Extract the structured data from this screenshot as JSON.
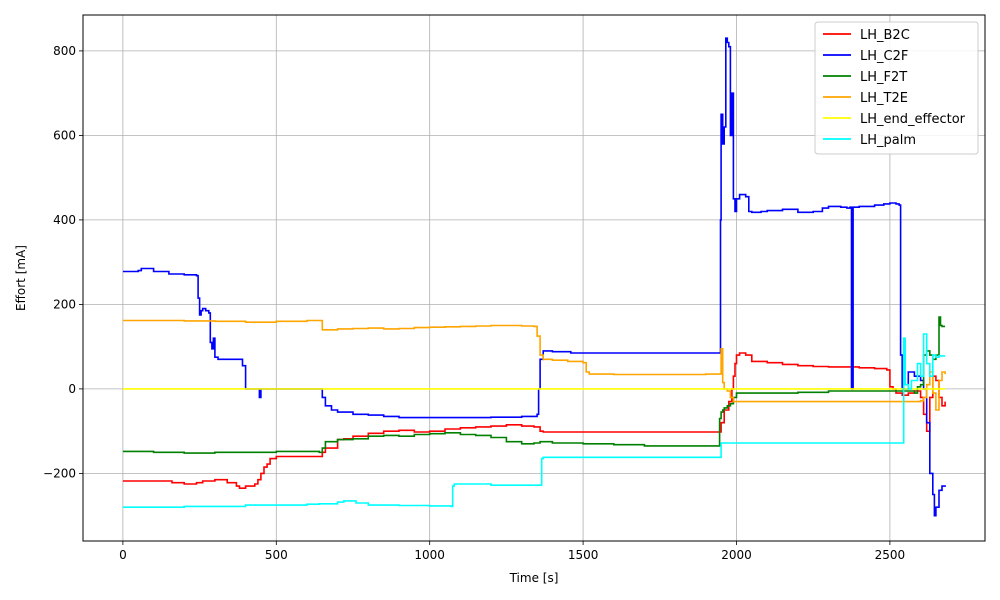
{
  "chart_data": {
    "type": "line",
    "title": "",
    "xlabel": "Time [s]",
    "ylabel": "Effort [mA]",
    "xlim": [
      -130,
      2810
    ],
    "ylim": [
      -360,
      885
    ],
    "xticks": [
      0,
      500,
      1000,
      1500,
      2000,
      2500
    ],
    "yticks": [
      -200,
      0,
      200,
      400,
      600,
      800
    ],
    "grid": true,
    "legend_position": "top-right",
    "series": [
      {
        "name": "LH_B2C",
        "color": "#ff0000",
        "x": [
          0,
          150,
          160,
          200,
          240,
          260,
          300,
          340,
          370,
          380,
          400,
          430,
          440,
          450,
          460,
          470,
          480,
          500,
          600,
          640,
          650,
          660,
          700,
          720,
          750,
          800,
          850,
          900,
          950,
          1000,
          1050,
          1100,
          1150,
          1200,
          1250,
          1300,
          1340,
          1360,
          1370,
          1500,
          1700,
          1900,
          1945,
          1950,
          1960,
          1975,
          1985,
          1990,
          1995,
          2000,
          2010,
          2030,
          2050,
          2100,
          2150,
          2200,
          2250,
          2300,
          2350,
          2400,
          2450,
          2490,
          2500,
          2510,
          2520,
          2540,
          2560,
          2580,
          2600,
          2610,
          2620,
          2630,
          2640,
          2650,
          2660,
          2670,
          2680
        ],
        "y": [
          -218,
          -218,
          -222,
          -225,
          -222,
          -218,
          -215,
          -222,
          -230,
          -235,
          -230,
          -225,
          -215,
          -200,
          -185,
          -178,
          -165,
          -160,
          -160,
          -160,
          -150,
          -140,
          -120,
          -118,
          -112,
          -105,
          -100,
          -98,
          -102,
          -100,
          -95,
          -92,
          -90,
          -88,
          -85,
          -88,
          -90,
          -100,
          -102,
          -102,
          -102,
          -102,
          -102,
          -80,
          -50,
          -30,
          0,
          30,
          60,
          80,
          85,
          80,
          65,
          62,
          58,
          55,
          53,
          52,
          52,
          50,
          48,
          45,
          5,
          0,
          -10,
          -15,
          -10,
          -5,
          -20,
          -60,
          -100,
          -20,
          30,
          20,
          -20,
          -40,
          -30
        ]
      },
      {
        "name": "LH_C2F",
        "color": "#0000ff",
        "x": [
          0,
          50,
          60,
          100,
          150,
          200,
          240,
          245,
          250,
          255,
          260,
          270,
          280,
          285,
          290,
          295,
          300,
          310,
          330,
          380,
          390,
          400,
          420,
          430,
          440,
          445,
          450,
          500,
          600,
          640,
          650,
          660,
          680,
          700,
          750,
          800,
          850,
          900,
          950,
          1000,
          1100,
          1200,
          1300,
          1340,
          1350,
          1355,
          1360,
          1370,
          1400,
          1450,
          1460,
          1500,
          1600,
          1700,
          1800,
          1900,
          1940,
          1945,
          1948,
          1950,
          1955,
          1960,
          1965,
          1970,
          1975,
          1980,
          1985,
          1990,
          1995,
          2000,
          2010,
          2020,
          2030,
          2040,
          2050,
          2080,
          2100,
          2150,
          2200,
          2250,
          2280,
          2300,
          2340,
          2360,
          2370,
          2375,
          2380,
          2400,
          2450,
          2480,
          2500,
          2520,
          2530,
          2535,
          2540,
          2560,
          2580,
          2600,
          2610,
          2620,
          2630,
          2640,
          2645,
          2650,
          2660,
          2670,
          2680
        ],
        "y": [
          278,
          280,
          285,
          278,
          272,
          270,
          268,
          215,
          175,
          185,
          190,
          185,
          180,
          110,
          95,
          120,
          75,
          70,
          70,
          70,
          55,
          0,
          0,
          0,
          0,
          -20,
          0,
          0,
          0,
          0,
          -20,
          -40,
          -50,
          -55,
          -60,
          -62,
          -65,
          -68,
          -68,
          -68,
          -68,
          -67,
          -65,
          -65,
          -60,
          0,
          70,
          90,
          88,
          88,
          85,
          85,
          85,
          85,
          85,
          85,
          85,
          85,
          400,
          650,
          580,
          620,
          830,
          820,
          810,
          600,
          700,
          450,
          420,
          450,
          460,
          460,
          455,
          420,
          418,
          420,
          422,
          425,
          418,
          420,
          428,
          432,
          430,
          428,
          430,
          0,
          430,
          432,
          435,
          438,
          440,
          438,
          435,
          80,
          0,
          40,
          30,
          20,
          0,
          -80,
          -200,
          -250,
          -300,
          -280,
          -240,
          -230,
          -228
        ]
      },
      {
        "name": "LH_F2T",
        "color": "#008000",
        "x": [
          0,
          100,
          200,
          300,
          400,
          500,
          600,
          640,
          650,
          660,
          700,
          750,
          800,
          850,
          900,
          950,
          1000,
          1050,
          1100,
          1150,
          1200,
          1250,
          1300,
          1340,
          1360,
          1400,
          1500,
          1600,
          1700,
          1800,
          1900,
          1940,
          1945,
          1950,
          1955,
          1960,
          1970,
          1980,
          1990,
          2000,
          2020,
          2050,
          2100,
          2200,
          2300,
          2400,
          2450,
          2500,
          2510,
          2520,
          2530,
          2540,
          2550,
          2560,
          2570,
          2580,
          2590,
          2600,
          2610,
          2620,
          2630,
          2640,
          2650,
          2660,
          2665,
          2670,
          2680
        ],
        "y": [
          -148,
          -150,
          -152,
          -150,
          -150,
          -148,
          -148,
          -150,
          -140,
          -125,
          -120,
          -118,
          -112,
          -110,
          -112,
          -108,
          -106,
          -104,
          -108,
          -110,
          -115,
          -125,
          -130,
          -128,
          -125,
          -128,
          -130,
          -132,
          -135,
          -135,
          -135,
          -135,
          -70,
          -55,
          -50,
          -45,
          -40,
          -35,
          -20,
          -10,
          -10,
          -10,
          -10,
          -8,
          -5,
          -5,
          -5,
          -5,
          -5,
          -5,
          -5,
          -5,
          -5,
          -5,
          -5,
          -10,
          5,
          10,
          80,
          90,
          80,
          70,
          80,
          170,
          150,
          148,
          148
        ]
      },
      {
        "name": "LH_T2E",
        "color": "#ffa500",
        "x": [
          0,
          100,
          200,
          300,
          400,
          500,
          600,
          640,
          650,
          660,
          700,
          750,
          800,
          850,
          900,
          950,
          1000,
          1050,
          1100,
          1150,
          1200,
          1250,
          1300,
          1340,
          1350,
          1360,
          1370,
          1400,
          1450,
          1500,
          1510,
          1520,
          1600,
          1700,
          1800,
          1900,
          1945,
          1950,
          1955,
          1960,
          1970,
          1980,
          1990,
          2000,
          2050,
          2100,
          2200,
          2300,
          2400,
          2500,
          2550,
          2600,
          2610,
          2620,
          2630,
          2640,
          2650,
          2660,
          2670,
          2680
        ],
        "y": [
          162,
          162,
          161,
          160,
          158,
          160,
          162,
          162,
          140,
          140,
          142,
          143,
          144,
          142,
          143,
          145,
          146,
          147,
          148,
          149,
          150,
          150,
          149,
          148,
          125,
          80,
          70,
          68,
          65,
          62,
          40,
          35,
          34,
          34,
          34,
          35,
          35,
          95,
          15,
          0,
          -5,
          -20,
          -30,
          -30,
          -30,
          -30,
          -30,
          -30,
          -30,
          -30,
          -30,
          -28,
          -20,
          10,
          40,
          -10,
          -50,
          20,
          40,
          35
        ]
      },
      {
        "name": "LH_end_effector",
        "color": "#ffff00",
        "x": [
          0,
          2680
        ],
        "y": [
          0,
          0
        ]
      },
      {
        "name": "LH_palm",
        "color": "#00ffff",
        "x": [
          0,
          200,
          400,
          600,
          640,
          700,
          720,
          760,
          800,
          900,
          1000,
          1070,
          1075,
          1080,
          1200,
          1300,
          1360,
          1365,
          1370,
          1500,
          1700,
          1900,
          1945,
          1950,
          1960,
          2100,
          2300,
          2500,
          2540,
          2545,
          2550,
          2560,
          2570,
          2580,
          2590,
          2600,
          2610,
          2620,
          2630,
          2640,
          2650,
          2660,
          2670,
          2680
        ],
        "y": [
          -280,
          -278,
          -275,
          -273,
          -272,
          -268,
          -265,
          -270,
          -275,
          -276,
          -277,
          -278,
          -230,
          -225,
          -228,
          -228,
          -228,
          -165,
          -162,
          -162,
          -162,
          -162,
          -162,
          -128,
          -128,
          -128,
          -128,
          -128,
          -128,
          120,
          10,
          0,
          20,
          20,
          60,
          30,
          130,
          60,
          30,
          80,
          75,
          78,
          78,
          78
        ]
      }
    ]
  }
}
